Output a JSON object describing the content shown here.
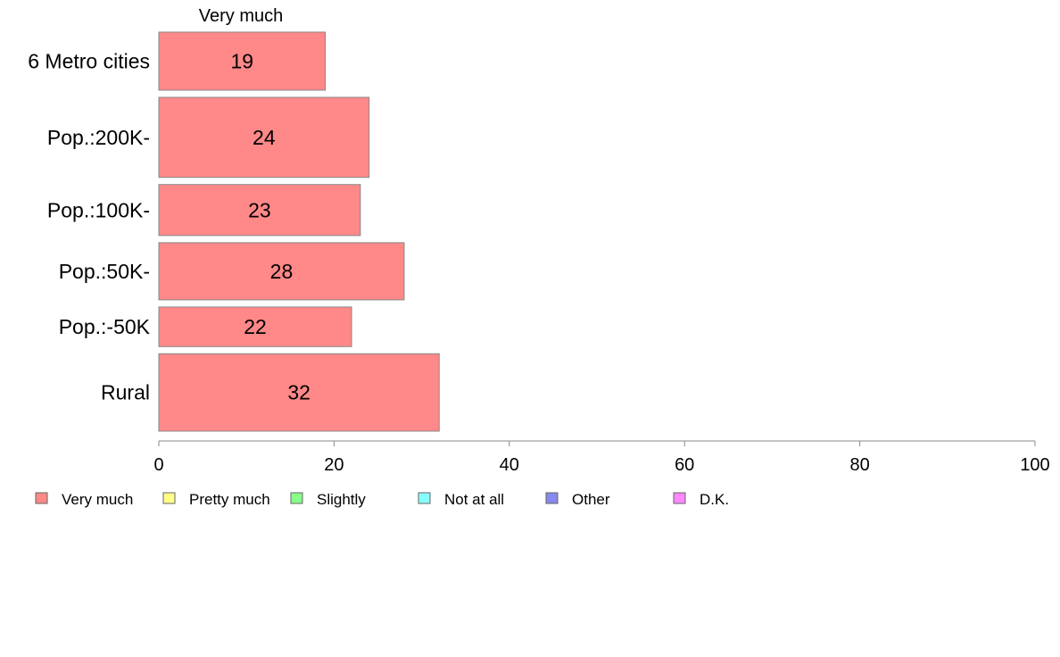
{
  "chart_data": {
    "type": "bar",
    "orientation": "horizontal",
    "series_header": "Very much",
    "categories": [
      "6 Metro cities",
      "Pop.:200K-",
      "Pop.:100K-",
      "Pop.:50K-",
      "Pop.:-50K",
      "Rural"
    ],
    "series": [
      {
        "name": "Very much",
        "color": "#ff8888",
        "values": [
          19,
          24,
          23,
          28,
          22,
          32
        ],
        "labels": [
          "19",
          "24",
          "23",
          "28",
          "22",
          "32"
        ]
      }
    ],
    "category_weights": [
      0.66,
      0.91,
      0.58,
      0.65,
      0.45,
      0.88
    ],
    "xlim": [
      0,
      100
    ],
    "x_ticks": [
      0,
      20,
      40,
      60,
      80,
      100
    ],
    "xlabel": "",
    "ylabel": "",
    "grid": false,
    "legend": {
      "placement": "bottom-left",
      "items": [
        {
          "label": "Very much",
          "color": "#ff8888"
        },
        {
          "label": "Pretty much",
          "color": "#ffff88"
        },
        {
          "label": "Slightly",
          "color": "#88ff88"
        },
        {
          "label": "Not at all",
          "color": "#88ffff"
        },
        {
          "label": "Other",
          "color": "#8888ee"
        },
        {
          "label": "D.K.",
          "color": "#ff88ff"
        }
      ]
    }
  }
}
